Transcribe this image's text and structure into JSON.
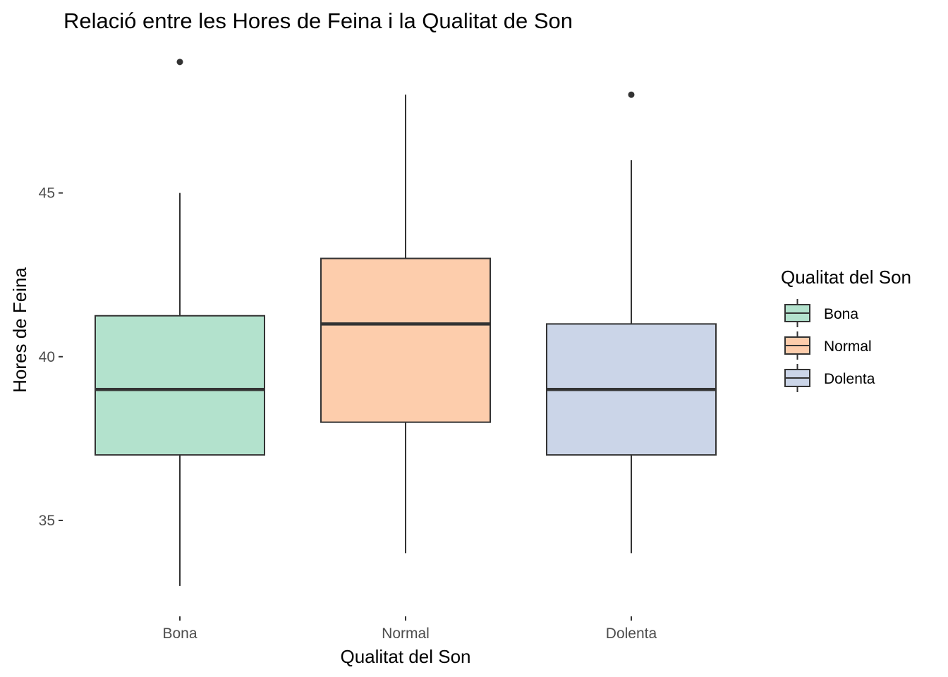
{
  "chart_data": {
    "type": "box",
    "title": "Relació entre les Hores de Feina i la Qualitat de Son",
    "xlabel": "Qualitat del Son",
    "ylabel": "Hores de Feina",
    "categories": [
      "Bona",
      "Normal",
      "Dolenta"
    ],
    "ylim": [
      32.2,
      49.6
    ],
    "yticks": [
      35,
      40,
      45
    ],
    "grid": false,
    "legend": {
      "title": "Qualitat del Son",
      "position": "right",
      "entries": [
        "Bona",
        "Normal",
        "Dolenta"
      ]
    },
    "series": [
      {
        "name": "Bona",
        "color": "#b3e2cd",
        "whisker_low": 33,
        "q1": 37,
        "median": 39,
        "q3": 41.25,
        "whisker_high": 45,
        "outliers": [
          49
        ]
      },
      {
        "name": "Normal",
        "color": "#fdcdac",
        "whisker_low": 34,
        "q1": 38,
        "median": 41,
        "q3": 43,
        "whisker_high": 48,
        "outliers": []
      },
      {
        "name": "Dolenta",
        "color": "#cbd5e8",
        "whisker_low": 34,
        "q1": 37,
        "median": 39,
        "q3": 41,
        "whisker_high": 46,
        "outliers": [
          48
        ]
      }
    ]
  }
}
